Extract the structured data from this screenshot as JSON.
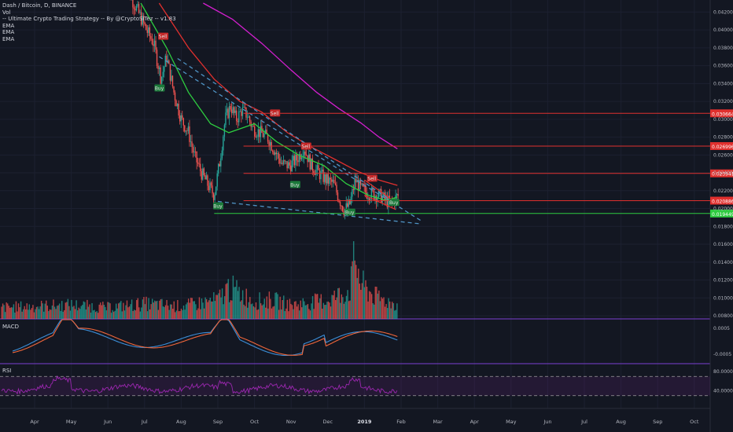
{
  "legend": {
    "symbol": "Dash / Bitcoin, D, BINANCE",
    "vol": "Vol",
    "strategy": "-- Ultimate Crypto Trading Strategy -- By @CryptoSiTez -- v1.83",
    "ema1": "EMA",
    "ema2": "EMA",
    "ema3": "EMA"
  },
  "panes": {
    "macd": "MACD",
    "rsi": "RSI"
  },
  "colors": {
    "background": "#131722",
    "up": "#26a69a",
    "down": "#ef5350",
    "ema_fast": "#2ecc40",
    "ema_mid": "#e0302e",
    "ema_slow": "#d41fcf",
    "support": "#2ecc40",
    "resistance": "#e0302e",
    "trend": "#4f93c4",
    "macd": "#3b8ed8",
    "signal": "#f0663a",
    "rsi": "#9c27b0",
    "pane_border": "#7b3fd1"
  },
  "chart_data": {
    "type": "candlestick",
    "title": "Dash / Bitcoin, D, BINANCE",
    "x_tick_labels": [
      "Apr",
      "May",
      "Jun",
      "Jul",
      "Aug",
      "Sep",
      "Oct",
      "Nov",
      "Dec",
      "2019",
      "Feb",
      "Mar",
      "Apr",
      "May",
      "Jun",
      "Jul",
      "Aug",
      "Sep",
      "Oct"
    ],
    "y_ticks": [
      "0.042000",
      "0.040000",
      "0.038000",
      "0.036000",
      "0.034000",
      "0.032000",
      "0.030000",
      "0.028000",
      "0.026000",
      "0.024000",
      "0.022000",
      "0.020000",
      "0.018000",
      "0.016000",
      "0.014000",
      "0.012000",
      "0.010000",
      "0.008000"
    ],
    "y_range": [
      0.008,
      0.043
    ],
    "price_levels": [
      {
        "value": 0.030664,
        "label": "0.030664",
        "kind": "resistance"
      },
      {
        "value": 0.026996,
        "label": "0.026996",
        "kind": "resistance"
      },
      {
        "value": 0.023941,
        "label": "0.023941",
        "kind": "resistance"
      },
      {
        "value": 0.020886,
        "label": "0.020886",
        "kind": "resistance"
      },
      {
        "value": 0.019449,
        "label": "0.019449",
        "kind": "support"
      }
    ],
    "signals": [
      {
        "label": "Sell",
        "month": 3.5,
        "price": 0.0393,
        "kind": "sell"
      },
      {
        "label": "Buy",
        "month": 3.4,
        "price": 0.0335,
        "kind": "buy"
      },
      {
        "label": "Sell",
        "month": 6.55,
        "price": 0.0307,
        "kind": "sell"
      },
      {
        "label": "Buy",
        "month": 5.0,
        "price": 0.0203,
        "kind": "buy"
      },
      {
        "label": "Sell",
        "month": 7.4,
        "price": 0.027,
        "kind": "sell"
      },
      {
        "label": "Buy",
        "month": 7.1,
        "price": 0.0227,
        "kind": "buy"
      },
      {
        "label": "Sell",
        "month": 9.2,
        "price": 0.0234,
        "kind": "sell"
      },
      {
        "label": "Buy",
        "month": 8.6,
        "price": 0.0196,
        "kind": "buy"
      },
      {
        "label": "Buy",
        "month": 9.8,
        "price": 0.0207,
        "kind": "buy"
      }
    ],
    "ema_series": [
      {
        "key": "ema_fast",
        "points": [
          [
            2.9,
            0.043
          ],
          [
            3.6,
            0.038
          ],
          [
            4.2,
            0.033
          ],
          [
            4.8,
            0.0295
          ],
          [
            5.3,
            0.0285
          ],
          [
            6.0,
            0.0295
          ],
          [
            6.6,
            0.0275
          ],
          [
            7.2,
            0.026
          ],
          [
            7.9,
            0.0248
          ],
          [
            8.5,
            0.0228
          ],
          [
            9.1,
            0.0215
          ],
          [
            9.6,
            0.0209
          ],
          [
            9.9,
            0.0213
          ]
        ]
      },
      {
        "key": "ema_mid",
        "points": [
          [
            3.4,
            0.043
          ],
          [
            4.2,
            0.038
          ],
          [
            4.9,
            0.0345
          ],
          [
            5.6,
            0.032
          ],
          [
            6.2,
            0.0308
          ],
          [
            6.9,
            0.0285
          ],
          [
            7.5,
            0.027
          ],
          [
            8.2,
            0.0255
          ],
          [
            8.8,
            0.0242
          ],
          [
            9.4,
            0.0232
          ],
          [
            9.9,
            0.0226
          ]
        ]
      },
      {
        "key": "ema_slow",
        "points": [
          [
            4.6,
            0.043
          ],
          [
            5.4,
            0.0412
          ],
          [
            6.2,
            0.0385
          ],
          [
            7.0,
            0.0355
          ],
          [
            7.7,
            0.033
          ],
          [
            8.3,
            0.0312
          ],
          [
            8.9,
            0.0296
          ],
          [
            9.4,
            0.028
          ],
          [
            9.9,
            0.0267
          ]
        ]
      }
    ],
    "trend_lines": [
      {
        "from": [
          3.4,
          0.037
        ],
        "to": [
          10.6,
          0.0185
        ]
      },
      {
        "from": [
          5.0,
          0.0208
        ],
        "to": [
          10.5,
          0.0183
        ]
      },
      {
        "from": [
          3.9,
          0.0368
        ],
        "to": [
          10.0,
          0.0202
        ]
      }
    ],
    "close_path": [
      [
        2.5,
        0.045
      ],
      [
        2.65,
        0.0435
      ],
      [
        2.85,
        0.0418
      ],
      [
        3.05,
        0.04
      ],
      [
        3.25,
        0.0385
      ],
      [
        3.45,
        0.0345
      ],
      [
        3.6,
        0.037
      ],
      [
        3.8,
        0.033
      ],
      [
        4.0,
        0.03
      ],
      [
        4.2,
        0.0285
      ],
      [
        4.35,
        0.026
      ],
      [
        4.55,
        0.024
      ],
      [
        4.75,
        0.0225
      ],
      [
        4.9,
        0.0215
      ],
      [
        5.05,
        0.0252
      ],
      [
        5.2,
        0.03
      ],
      [
        5.35,
        0.0315
      ],
      [
        5.5,
        0.03
      ],
      [
        5.65,
        0.031
      ],
      [
        5.8,
        0.0305
      ],
      [
        5.95,
        0.029
      ],
      [
        6.15,
        0.0285
      ],
      [
        6.35,
        0.028
      ],
      [
        6.55,
        0.0265
      ],
      [
        6.75,
        0.025
      ],
      [
        6.95,
        0.0248
      ],
      [
        7.15,
        0.0255
      ],
      [
        7.35,
        0.0268
      ],
      [
        7.55,
        0.0248
      ],
      [
        7.75,
        0.024
      ],
      [
        7.95,
        0.0232
      ],
      [
        8.15,
        0.0228
      ],
      [
        8.3,
        0.0212
      ],
      [
        8.45,
        0.0198
      ],
      [
        8.6,
        0.0205
      ],
      [
        8.75,
        0.0232
      ],
      [
        8.9,
        0.0222
      ],
      [
        9.05,
        0.0218
      ],
      [
        9.25,
        0.0216
      ],
      [
        9.45,
        0.0214
      ],
      [
        9.6,
        0.0208
      ],
      [
        9.75,
        0.0207
      ],
      [
        9.9,
        0.0214
      ]
    ],
    "volume_envelope": [
      [
        0,
        0.2
      ],
      [
        1,
        0.22
      ],
      [
        2,
        0.18
      ],
      [
        3,
        0.24
      ],
      [
        4,
        0.2
      ],
      [
        5,
        0.3
      ],
      [
        5.3,
        0.5
      ],
      [
        6,
        0.28
      ],
      [
        6.5,
        0.3
      ],
      [
        7,
        0.22
      ],
      [
        7.5,
        0.26
      ],
      [
        8,
        0.3
      ],
      [
        8.6,
        0.45
      ],
      [
        8.75,
        1.0
      ],
      [
        8.9,
        0.55
      ],
      [
        9.3,
        0.35
      ],
      [
        9.9,
        0.22
      ]
    ],
    "macd": {
      "y_ticks": [
        "0.0005",
        "-0.0005"
      ]
    },
    "rsi": {
      "y_ticks": [
        "80.0000",
        "40.0000"
      ],
      "upper": 70,
      "lower": 30
    }
  }
}
